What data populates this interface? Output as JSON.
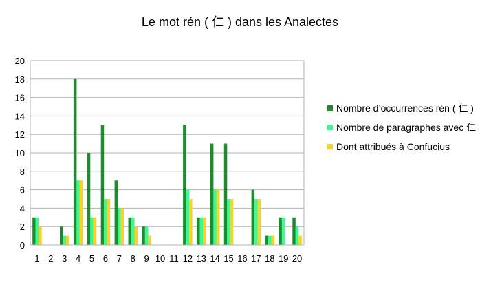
{
  "chart_data": {
    "type": "bar",
    "title": "Le mot rén ( 仁 ) dans les Analectes",
    "xlabel": "",
    "ylabel": "",
    "categories": [
      "1",
      "2",
      "3",
      "4",
      "5",
      "6",
      "7",
      "8",
      "9",
      "10",
      "11",
      "12",
      "13",
      "14",
      "15",
      "16",
      "17",
      "18",
      "19",
      "20"
    ],
    "ylim": [
      0,
      20
    ],
    "yticks": [
      0,
      2,
      4,
      6,
      8,
      10,
      12,
      14,
      16,
      18,
      20
    ],
    "grid": true,
    "legend_position": "right",
    "series": [
      {
        "name": "Nombre d’occurrences rén ( 仁 )",
        "color": "#1e8c2e",
        "values": [
          3,
          0,
          2,
          18,
          10,
          13,
          7,
          3,
          2,
          0,
          0,
          13,
          3,
          11,
          11,
          0,
          6,
          1,
          3,
          3
        ]
      },
      {
        "name": "Nombre de paragraphes avec 仁",
        "color": "#3dfa90",
        "values": [
          3,
          0,
          1,
          7,
          3,
          5,
          4,
          3,
          2,
          0,
          0,
          6,
          3,
          6,
          5,
          0,
          5,
          1,
          3,
          2
        ]
      },
      {
        "name": "Dont attribués à Confucius",
        "color": "#f5d327",
        "values": [
          2,
          0,
          1,
          7,
          3,
          5,
          4,
          2,
          1,
          0,
          0,
          5,
          3,
          6,
          5,
          0,
          5,
          1,
          0,
          1
        ]
      }
    ]
  }
}
